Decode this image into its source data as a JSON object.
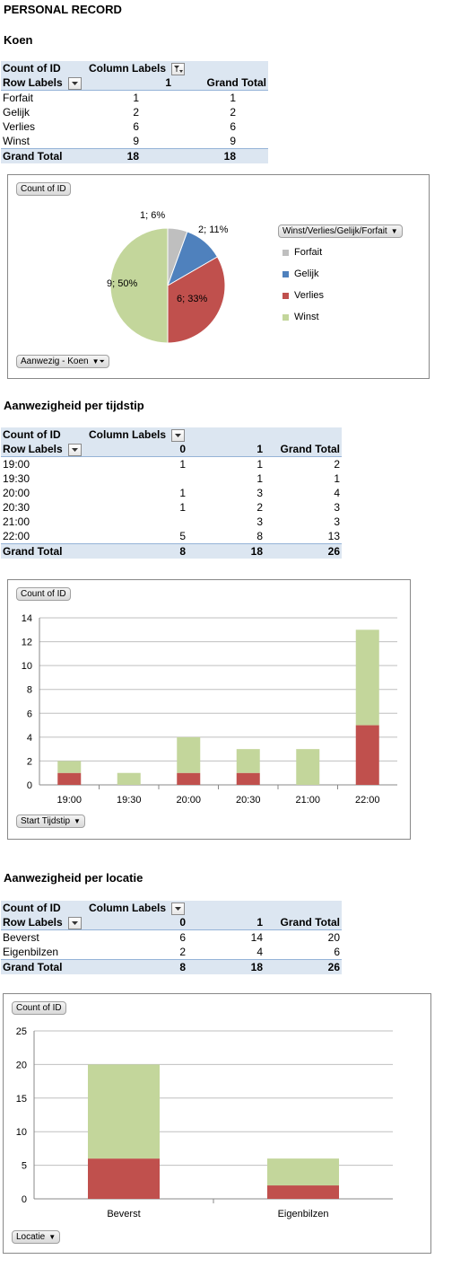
{
  "page_title": "PERSONAL RECORD",
  "section1": {
    "heading": "Koen",
    "pivot": {
      "corner": "Count of ID",
      "col_labels": "Column Labels",
      "row_labels": "Row Labels",
      "col_value": "1",
      "grand_total_header": "Grand Total",
      "rows": [
        {
          "label": "Forfait",
          "v1": "1",
          "total": "1"
        },
        {
          "label": "Gelijk",
          "v1": "2",
          "total": "2"
        },
        {
          "label": "Verlies",
          "v1": "6",
          "total": "6"
        },
        {
          "label": "Winst",
          "v1": "9",
          "total": "9"
        }
      ],
      "grand_total_label": "Grand Total",
      "grand_total_v1": "18",
      "grand_total_total": "18"
    },
    "chart_field_value": "Count of ID",
    "chart_filter": "Aanwezig - Koen",
    "legend_field": "Winst/Verlies/Gelijk/Forfait"
  },
  "section2": {
    "heading": "Aanwezigheid per tijdstip",
    "pivot": {
      "corner": "Count of ID",
      "col_labels": "Column Labels",
      "row_labels": "Row Labels",
      "col0": "0",
      "col1": "1",
      "grand_total_header": "Grand Total",
      "rows": [
        {
          "label": "19:00",
          "v0": "1",
          "v1": "1",
          "total": "2"
        },
        {
          "label": "19:30",
          "v0": "",
          "v1": "1",
          "total": "1"
        },
        {
          "label": "20:00",
          "v0": "1",
          "v1": "3",
          "total": "4"
        },
        {
          "label": "20:30",
          "v0": "1",
          "v1": "2",
          "total": "3"
        },
        {
          "label": "21:00",
          "v0": "",
          "v1": "3",
          "total": "3"
        },
        {
          "label": "22:00",
          "v0": "5",
          "v1": "8",
          "total": "13"
        }
      ],
      "grand_total_label": "Grand Total",
      "grand_total_v0": "8",
      "grand_total_v1": "18",
      "grand_total_total": "26"
    },
    "chart_field_value": "Count of ID",
    "axis_field": "Start Tijdstip"
  },
  "section3": {
    "heading": "Aanwezigheid per locatie",
    "pivot": {
      "corner": "Count of ID",
      "col_labels": "Column Labels",
      "row_labels": "Row Labels",
      "col0": "0",
      "col1": "1",
      "grand_total_header": "Grand Total",
      "rows": [
        {
          "label": "Beverst",
          "v0": "6",
          "v1": "14",
          "total": "20"
        },
        {
          "label": "Eigenbilzen",
          "v0": "2",
          "v1": "4",
          "total": "6"
        }
      ],
      "grand_total_label": "Grand Total",
      "grand_total_v0": "8",
      "grand_total_v1": "18",
      "grand_total_total": "26"
    },
    "chart_field_value": "Count of ID",
    "axis_field": "Locatie"
  },
  "colors": {
    "grey": "#bfbfbf",
    "blue": "#4f81bd",
    "red": "#c0504d",
    "green": "#c3d69b",
    "pivot_header": "#dce6f1"
  },
  "chart_data": [
    {
      "type": "pie",
      "categories": [
        "Forfait",
        "Gelijk",
        "Verlies",
        "Winst"
      ],
      "values": [
        1,
        2,
        6,
        9
      ],
      "data_labels": [
        "1; 6%",
        "2; 11%",
        "6; 33%",
        "9; 50%"
      ],
      "legend": [
        "Forfait",
        "Gelijk",
        "Verlies",
        "Winst"
      ],
      "legend_placement": "right"
    },
    {
      "type": "bar",
      "stacked": true,
      "categories": [
        "19:00",
        "19:30",
        "20:00",
        "20:30",
        "21:00",
        "22:00"
      ],
      "series": [
        {
          "values": [
            1,
            0,
            1,
            1,
            0,
            5
          ]
        },
        {
          "values": [
            1,
            1,
            3,
            2,
            3,
            8
          ]
        }
      ],
      "ylim": [
        0,
        14
      ],
      "yticks": [
        "0",
        "2",
        "4",
        "6",
        "8",
        "10",
        "12",
        "14"
      ],
      "grid": true
    },
    {
      "type": "bar",
      "stacked": true,
      "categories": [
        "Beverst",
        "Eigenbilzen"
      ],
      "series": [
        {
          "values": [
            6,
            2
          ]
        },
        {
          "values": [
            14,
            4
          ]
        }
      ],
      "ylim": [
        0,
        25
      ],
      "yticks": [
        "0",
        "5",
        "10",
        "15",
        "20",
        "25"
      ],
      "grid": true
    }
  ]
}
